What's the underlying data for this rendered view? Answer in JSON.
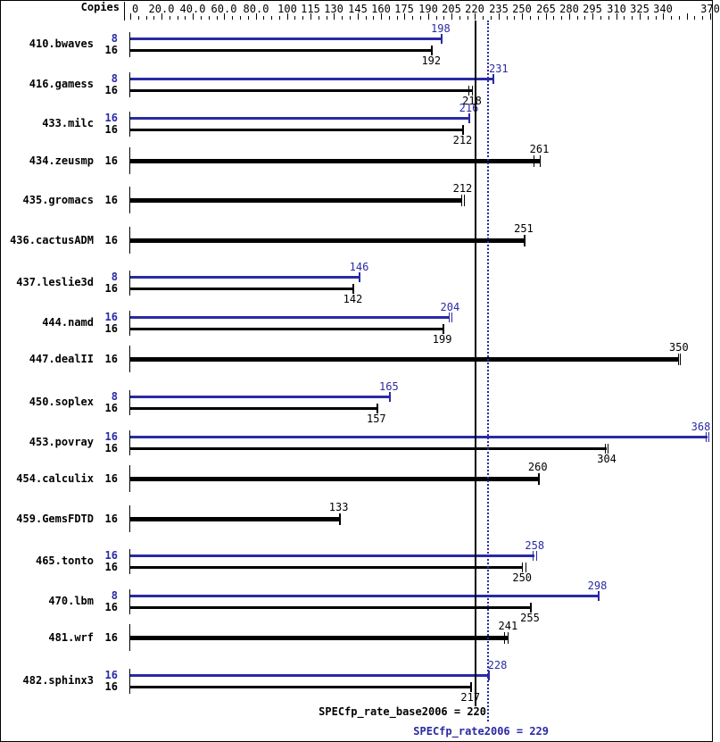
{
  "header": {
    "copies_label": "Copies"
  },
  "colors": {
    "peak_blue": "#2a2aa4",
    "base_black": "#000000",
    "background": "#ffffff"
  },
  "footer": {
    "base_text": "SPECfp_rate_base2006 = 220",
    "peak_text": "SPECfp_rate2006 = 229"
  },
  "chart_data": {
    "type": "bar",
    "orientation": "horizontal",
    "title": "",
    "xlabel": "",
    "ylabel": "Copies",
    "xlim": [
      0,
      370
    ],
    "grid": false,
    "x_axis": {
      "major_tick_values": [
        0,
        20,
        40,
        60,
        80,
        100,
        115,
        130,
        145,
        160,
        175,
        190,
        205,
        220,
        235,
        250,
        265,
        280,
        295,
        310,
        325,
        340,
        355,
        370
      ],
      "major_tick_labels": [
        "0",
        "20.0",
        "40.0",
        "60.0",
        "80.0",
        "100",
        "115",
        "130",
        "145",
        "160",
        "175",
        "190",
        "205",
        "220",
        "235",
        "250",
        "265",
        "280",
        "295",
        "310",
        "325",
        "340",
        "",
        "370"
      ],
      "minor_tick_step": 5
    },
    "reference_lines": [
      {
        "name": "SPECfp_rate_base2006",
        "value": 220,
        "style": "solid",
        "color": "#000000"
      },
      {
        "name": "SPECfp_rate2006",
        "value": 229,
        "style": "dotted",
        "color": "#2a2aa4"
      }
    ],
    "categories": [
      "410.bwaves",
      "416.gamess",
      "433.milc",
      "434.zeusmp",
      "435.gromacs",
      "436.cactusADM",
      "437.leslie3d",
      "444.namd",
      "447.dealII",
      "450.soplex",
      "453.povray",
      "454.calculix",
      "459.GemsFDTD",
      "465.tonto",
      "470.lbm",
      "481.wrf",
      "482.sphinx3"
    ],
    "series": [
      {
        "name": "peak",
        "color": "#2a2aa4",
        "copies": [
          8,
          8,
          16,
          null,
          null,
          null,
          8,
          16,
          null,
          8,
          16,
          null,
          null,
          16,
          8,
          null,
          16
        ],
        "values": [
          198,
          231,
          216,
          null,
          null,
          null,
          146,
          204,
          null,
          165,
          368,
          null,
          null,
          258,
          298,
          null,
          228
        ]
      },
      {
        "name": "base",
        "color": "#000000",
        "copies": [
          16,
          16,
          16,
          16,
          16,
          16,
          16,
          16,
          16,
          16,
          16,
          16,
          16,
          16,
          16,
          16,
          16
        ],
        "values": [
          192,
          218,
          212,
          261,
          212,
          251,
          142,
          199,
          350,
          157,
          304,
          260,
          133,
          250,
          255,
          241,
          217
        ]
      }
    ],
    "rows": [
      {
        "name": "410.bwaves",
        "peak": {
          "copies": "8",
          "value": 198,
          "ticks": [
            198
          ]
        },
        "base": {
          "copies": "16",
          "value": 192,
          "ticks": [
            192
          ]
        }
      },
      {
        "name": "416.gamess",
        "peak": {
          "copies": "8",
          "value": 231,
          "ticks": [
            231
          ],
          "label_dx": 7
        },
        "base": {
          "copies": "16",
          "value": 218,
          "ticks": [
            215.5,
            218
          ]
        }
      },
      {
        "name": "433.milc",
        "peak": {
          "copies": "16",
          "value": 216,
          "ticks": [
            216
          ]
        },
        "base": {
          "copies": "16",
          "value": 212,
          "ticks": [
            212
          ]
        }
      },
      {
        "name": "434.zeusmp",
        "base": {
          "copies": "16",
          "value": 261,
          "ticks": [
            257.5,
            261
          ]
        }
      },
      {
        "name": "435.gromacs",
        "base": {
          "copies": "16",
          "value": 212,
          "ticks": [
            211,
            212.7
          ]
        }
      },
      {
        "name": "436.cactusADM",
        "base": {
          "copies": "16",
          "value": 251,
          "ticks": [
            251
          ]
        }
      },
      {
        "name": "437.leslie3d",
        "peak": {
          "copies": "8",
          "value": 146,
          "ticks": [
            146
          ]
        },
        "base": {
          "copies": "16",
          "value": 142,
          "ticks": [
            142
          ]
        }
      },
      {
        "name": "444.namd",
        "peak": {
          "copies": "16",
          "value": 204,
          "ticks": [
            203.3,
            204.8
          ]
        },
        "base": {
          "copies": "16",
          "value": 199,
          "ticks": [
            199
          ]
        }
      },
      {
        "name": "447.dealII",
        "base": {
          "copies": "16",
          "value": 350,
          "ticks": [
            349.3,
            350.9
          ]
        }
      },
      {
        "name": "450.soplex",
        "peak": {
          "copies": "8",
          "value": 165,
          "ticks": [
            165
          ]
        },
        "base": {
          "copies": "16",
          "value": 157,
          "ticks": [
            157
          ]
        }
      },
      {
        "name": "453.povray",
        "peak": {
          "copies": "16",
          "value": 368,
          "ticks": [
            367.2,
            368.6
          ],
          "label_dx": -7
        },
        "base": {
          "copies": "16",
          "value": 304,
          "ticks": [
            302.6,
            304.5
          ]
        }
      },
      {
        "name": "454.calculix",
        "base": {
          "copies": "16",
          "value": 260,
          "ticks": [
            260
          ]
        }
      },
      {
        "name": "459.GemsFDTD",
        "base": {
          "copies": "16",
          "value": 133,
          "ticks": [
            133
          ]
        }
      },
      {
        "name": "465.tonto",
        "peak": {
          "copies": "16",
          "value": 258,
          "ticks": [
            257,
            258.8
          ]
        },
        "base": {
          "copies": "16",
          "value": 250,
          "ticks": [
            250,
            252.3
          ]
        }
      },
      {
        "name": "470.lbm",
        "peak": {
          "copies": "8",
          "value": 298,
          "ticks": [
            298
          ]
        },
        "base": {
          "copies": "16",
          "value": 255,
          "ticks": [
            255
          ]
        }
      },
      {
        "name": "481.wrf",
        "base": {
          "copies": "16",
          "value": 241,
          "ticks": [
            238.5,
            241
          ]
        }
      },
      {
        "name": "482.sphinx3",
        "peak": {
          "copies": "16",
          "value": 228,
          "ticks": [
            228
          ],
          "label_dx": 11
        },
        "base": {
          "copies": "16",
          "value": 217,
          "ticks": [
            217
          ]
        }
      }
    ]
  }
}
